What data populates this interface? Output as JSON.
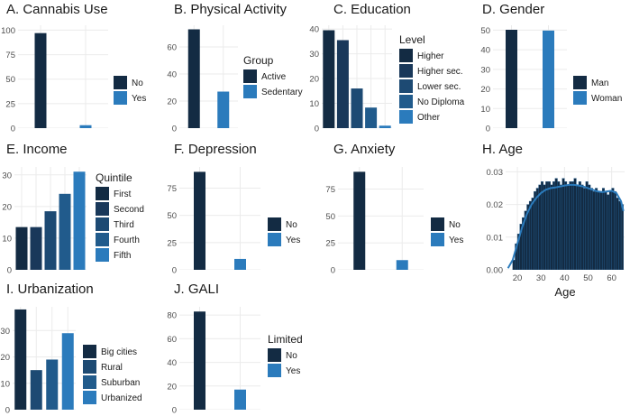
{
  "colors": {
    "dark": "#132b43",
    "c2": "#19385a",
    "c3": "#1d4a73",
    "c4": "#215b8c",
    "c5": "#266ea8",
    "c6": "#2b7bbc",
    "grid": "#ebebeb",
    "axis_text": "#4d4d4d"
  },
  "chart_data": [
    {
      "id": "A",
      "type": "bar",
      "title": "A. Cannabis Use",
      "categories": [
        "No",
        "Yes"
      ],
      "values": [
        97,
        3
      ],
      "ylim": [
        0,
        105
      ],
      "yticks": [
        0,
        25,
        50,
        75,
        100
      ],
      "legend_title": "",
      "legend_labels": [
        "No",
        "Yes"
      ],
      "color_keys": [
        "dark",
        "c6"
      ]
    },
    {
      "id": "B",
      "type": "bar",
      "title": "B. Physical Activity",
      "categories": [
        "Active",
        "Sedentary"
      ],
      "values": [
        73,
        27
      ],
      "ylim": [
        0,
        76
      ],
      "yticks": [
        0,
        20,
        40,
        60
      ],
      "legend_title": "Group",
      "legend_labels": [
        "Active",
        "Sedentary"
      ],
      "color_keys": [
        "dark",
        "c6"
      ]
    },
    {
      "id": "C",
      "type": "bar",
      "title": "C. Education",
      "categories": [
        "Higher",
        "Higher sec.",
        "Lower sec.",
        "No Diploma",
        "Other"
      ],
      "values": [
        39.5,
        35.5,
        16,
        8.3,
        1
      ],
      "ylim": [
        0,
        41.5
      ],
      "yticks": [
        0,
        10,
        20,
        30,
        40
      ],
      "legend_title": "Level",
      "legend_labels": [
        "Higher",
        "Higher sec.",
        "Lower sec.",
        "No Diploma",
        "Other"
      ],
      "color_keys": [
        "dark",
        "c2",
        "c3",
        "c4",
        "c6"
      ]
    },
    {
      "id": "D",
      "type": "bar",
      "title": "D. Gender",
      "categories": [
        "Man",
        "Woman"
      ],
      "values": [
        50.2,
        49.8
      ],
      "ylim": [
        0,
        52.5
      ],
      "yticks": [
        0,
        10,
        20,
        30,
        40,
        50
      ],
      "legend_title": "",
      "legend_labels": [
        "Man",
        "Woman"
      ],
      "color_keys": [
        "dark",
        "c6"
      ]
    },
    {
      "id": "E",
      "type": "bar",
      "title": "E. Income",
      "categories": [
        "First",
        "Second",
        "Third",
        "Fourth",
        "Fifth"
      ],
      "values": [
        13.5,
        13.5,
        18.5,
        24,
        31
      ],
      "ylim": [
        0,
        32.5
      ],
      "yticks": [
        0,
        10,
        20,
        30
      ],
      "legend_title": "Quintile",
      "legend_labels": [
        "First",
        "Second",
        "Third",
        "Fourth",
        "Fifth"
      ],
      "color_keys": [
        "dark",
        "c2",
        "c3",
        "c4",
        "c6"
      ]
    },
    {
      "id": "F",
      "type": "bar",
      "title": "F. Depression",
      "categories": [
        "No",
        "Yes"
      ],
      "values": [
        90,
        10
      ],
      "ylim": [
        0,
        94.5
      ],
      "yticks": [
        0,
        25,
        50,
        75
      ],
      "legend_title": "",
      "legend_labels": [
        "No",
        "Yes"
      ],
      "color_keys": [
        "dark",
        "c6"
      ]
    },
    {
      "id": "G",
      "type": "bar",
      "title": "G. Anxiety",
      "categories": [
        "No",
        "Yes"
      ],
      "values": [
        91,
        9
      ],
      "ylim": [
        0,
        95.5
      ],
      "yticks": [
        0,
        25,
        50,
        75
      ],
      "legend_title": "",
      "legend_labels": [
        "No",
        "Yes"
      ],
      "color_keys": [
        "dark",
        "c6"
      ]
    },
    {
      "id": "H",
      "type": "histogram",
      "title": "H. Age",
      "xlabel": "Age",
      "ylabel": "",
      "xlim": [
        15,
        65.5
      ],
      "xticks": [
        20,
        30,
        40,
        50,
        60
      ],
      "ylim": [
        0,
        0.0315
      ],
      "yticks": [
        0,
        0.01,
        0.02,
        0.03
      ],
      "ytick_labels": [
        "0.00",
        "0.01",
        "0.02",
        "0.03"
      ],
      "bin_start": 18,
      "bin_width": 1,
      "densities": [
        0.003,
        0.008,
        0.011,
        0.014,
        0.016,
        0.018,
        0.02,
        0.021,
        0.022,
        0.024,
        0.025,
        0.026,
        0.027,
        0.026,
        0.027,
        0.027,
        0.026,
        0.027,
        0.028,
        0.027,
        0.026,
        0.028,
        0.027,
        0.026,
        0.027,
        0.027,
        0.028,
        0.026,
        0.027,
        0.026,
        0.025,
        0.027,
        0.026,
        0.025,
        0.024,
        0.025,
        0.024,
        0.024,
        0.025,
        0.024,
        0.023,
        0.024,
        0.025,
        0.024,
        0.022,
        0.021,
        0.02
      ],
      "kde_x": [
        16,
        18,
        20,
        22,
        24,
        26,
        28,
        30,
        32,
        34,
        36,
        38,
        40,
        42,
        44,
        46,
        48,
        50,
        52,
        54,
        56,
        58,
        60,
        62,
        64,
        65
      ],
      "kde_y": [
        0.0005,
        0.003,
        0.008,
        0.013,
        0.017,
        0.02,
        0.022,
        0.0235,
        0.0245,
        0.025,
        0.0252,
        0.0255,
        0.0258,
        0.026,
        0.026,
        0.0258,
        0.0255,
        0.025,
        0.0245,
        0.024,
        0.0238,
        0.024,
        0.0242,
        0.0235,
        0.021,
        0.018
      ]
    },
    {
      "id": "I",
      "type": "bar",
      "title": "I. Urbanization",
      "categories": [
        "Big cities",
        "Rural",
        "Suburban",
        "Urbanized"
      ],
      "values": [
        38,
        15,
        19,
        29
      ],
      "ylim": [
        0,
        39
      ],
      "yticks": [
        0,
        10,
        20,
        30
      ],
      "legend_title": "",
      "legend_labels": [
        "Big cities",
        "Rural",
        "Suburban",
        "Urbanized"
      ],
      "color_keys": [
        "dark",
        "c3",
        "c4",
        "c6"
      ]
    },
    {
      "id": "J",
      "type": "bar",
      "title": "J. GALI",
      "categories": [
        "No",
        "Yes"
      ],
      "values": [
        83,
        17
      ],
      "ylim": [
        0,
        87
      ],
      "yticks": [
        0,
        20,
        40,
        60,
        80
      ],
      "legend_title": "Limited",
      "legend_labels": [
        "No",
        "Yes"
      ],
      "color_keys": [
        "dark",
        "c6"
      ]
    }
  ]
}
